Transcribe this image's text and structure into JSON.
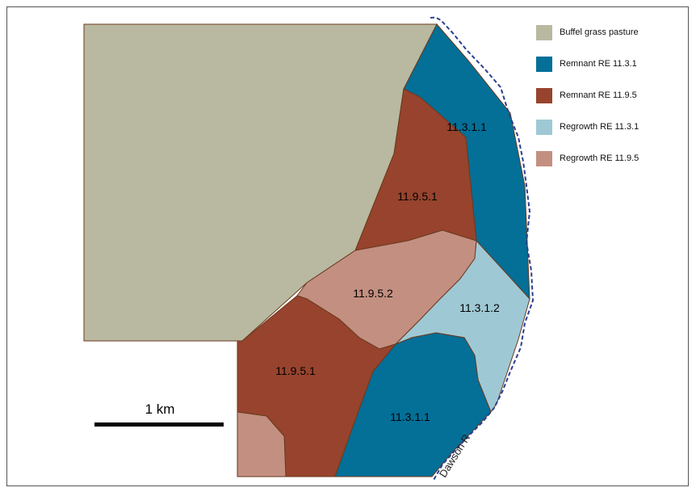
{
  "legend": [
    {
      "label": "Buffel grass pasture",
      "color": "#b8b9a0"
    },
    {
      "label": "Remnant RE 11.3.1",
      "color": "#046f97"
    },
    {
      "label": "Remnant RE 11.9.5",
      "color": "#97432d"
    },
    {
      "label": "Regrowth RE 11.3.1",
      "color": "#9fc8d5"
    },
    {
      "label": "Regrowth RE 11.9.5",
      "color": "#c38f81"
    }
  ],
  "regions": {
    "remnant_1131_north": "11.3.1.1",
    "remnant_1195_north": "11.9.5.1",
    "regrowth_1195": "11.9.5.2",
    "regrowth_1131": "11.3.1.2",
    "remnant_1195_south": "11.9.5.1",
    "remnant_1131_south": "11.3.1.1"
  },
  "scalebar": {
    "label": "1 km"
  },
  "river": {
    "label": "Dawson R"
  },
  "colors": {
    "pasture": "#b8b9a0",
    "remnant_1131": "#046f97",
    "remnant_1195": "#97432d",
    "regrowth_1131": "#9fc8d5",
    "regrowth_1195": "#c38f81",
    "river_line": "#2b3f8f"
  }
}
